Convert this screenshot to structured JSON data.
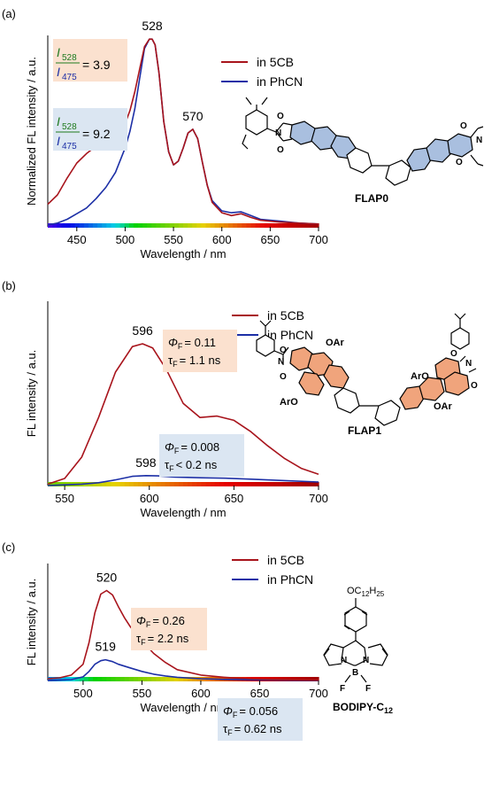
{
  "colors": {
    "five_cb": "#a8141c",
    "phcn": "#1c2fa6",
    "box_orange": "#fbe1cf",
    "box_blue": "#dbe6f2",
    "ring_blue": "#a9bfdf",
    "ring_orange": "#f0a47c"
  },
  "chart_data": [
    {
      "type": "line",
      "panel_label": "(a)",
      "xlabel": "Wavelength / nm",
      "ylabel": "Normalized FL intensity / a.u.",
      "xlim": [
        420,
        700
      ],
      "ylim": [
        0,
        1.02
      ],
      "xticks": [
        450,
        500,
        550,
        600,
        650,
        700
      ],
      "xtick_labels": [
        "450",
        "500",
        "550",
        "600",
        "650",
        "700"
      ],
      "legend": "top-right",
      "series": [
        {
          "name": "in 5CB",
          "color": "#a8141c",
          "x": [
            420,
            430,
            440,
            450,
            460,
            470,
            480,
            490,
            500,
            505,
            510,
            515,
            520,
            525,
            528,
            531,
            535,
            540,
            545,
            550,
            555,
            560,
            565,
            570,
            575,
            580,
            585,
            590,
            600,
            610,
            620,
            630,
            640,
            660,
            680,
            700
          ],
          "y": [
            0.12,
            0.17,
            0.26,
            0.34,
            0.39,
            0.43,
            0.44,
            0.47,
            0.55,
            0.62,
            0.72,
            0.84,
            0.96,
            1.0,
            1.0,
            0.97,
            0.82,
            0.56,
            0.4,
            0.33,
            0.35,
            0.42,
            0.5,
            0.52,
            0.47,
            0.34,
            0.22,
            0.13,
            0.075,
            0.06,
            0.07,
            0.05,
            0.035,
            0.025,
            0.02,
            0.015
          ]
        },
        {
          "name": "in PhCN",
          "color": "#1c2fa6",
          "x": [
            420,
            430,
            440,
            450,
            460,
            470,
            480,
            490,
            500,
            505,
            510,
            515,
            520,
            525,
            528,
            531,
            535,
            540,
            545,
            550,
            555,
            560,
            565,
            570,
            575,
            580,
            585,
            590,
            600,
            610,
            620,
            630,
            640,
            660,
            680,
            700
          ],
          "y": [
            0.01,
            0.02,
            0.04,
            0.07,
            0.1,
            0.15,
            0.21,
            0.29,
            0.42,
            0.51,
            0.63,
            0.79,
            0.95,
            1.0,
            1.0,
            0.97,
            0.82,
            0.56,
            0.4,
            0.33,
            0.35,
            0.42,
            0.5,
            0.52,
            0.47,
            0.34,
            0.22,
            0.14,
            0.085,
            0.075,
            0.08,
            0.06,
            0.04,
            0.03,
            0.02,
            0.015
          ]
        }
      ],
      "annotations": [
        {
          "text": "528",
          "x": 528,
          "y": 1.0
        },
        {
          "text": "570",
          "x": 570,
          "y": 0.52
        },
        {
          "text": "475",
          "x": 475,
          "y": 0.44
        }
      ]
    },
    {
      "type": "line",
      "panel_label": "(b)",
      "xlabel": "Wavelength / nm",
      "ylabel": "FL intensity / a.u.",
      "xlim": [
        540,
        700
      ],
      "ylim": [
        0,
        1.3
      ],
      "xticks": [
        550,
        600,
        650,
        700
      ],
      "xtick_labels": [
        "550",
        "600",
        "650",
        "700"
      ],
      "legend": "top",
      "series": [
        {
          "name": "in 5CB",
          "color": "#a8141c",
          "x": [
            540,
            550,
            560,
            570,
            580,
            590,
            596,
            602,
            610,
            620,
            630,
            640,
            650,
            660,
            670,
            680,
            690,
            700
          ],
          "y": [
            0.01,
            0.05,
            0.2,
            0.48,
            0.8,
            0.98,
            1.0,
            0.97,
            0.82,
            0.58,
            0.48,
            0.49,
            0.46,
            0.38,
            0.28,
            0.19,
            0.12,
            0.08
          ]
        },
        {
          "name": "in PhCN",
          "color": "#1c2fa6",
          "x": [
            540,
            550,
            560,
            570,
            580,
            590,
            598,
            605,
            615,
            630,
            645,
            660,
            680,
            700
          ],
          "y": [
            0.0,
            0.005,
            0.01,
            0.02,
            0.04,
            0.065,
            0.07,
            0.068,
            0.06,
            0.055,
            0.052,
            0.045,
            0.035,
            0.025
          ]
        }
      ],
      "annotations": [
        {
          "text": "596",
          "x": 596,
          "y": 1.0
        },
        {
          "text": "598",
          "x": 598,
          "y": 0.07
        }
      ]
    },
    {
      "type": "line",
      "panel_label": "(c)",
      "xlabel": "Wavelength / nm",
      "ylabel": "FL intensity / a.u.",
      "xlim": [
        470,
        700
      ],
      "ylim": [
        0,
        1.3
      ],
      "xticks": [
        500,
        550,
        600,
        650,
        700
      ],
      "xtick_labels": [
        "500",
        "550",
        "600",
        "650",
        "700"
      ],
      "legend": "top",
      "series": [
        {
          "name": "in 5CB",
          "color": "#a8141c",
          "x": [
            470,
            480,
            490,
            500,
            505,
            510,
            515,
            520,
            525,
            530,
            535,
            540,
            550,
            560,
            570,
            580,
            600,
            620,
            640,
            660,
            680,
            700
          ],
          "y": [
            0.02,
            0.03,
            0.06,
            0.18,
            0.42,
            0.75,
            0.96,
            1.0,
            0.95,
            0.82,
            0.7,
            0.6,
            0.44,
            0.3,
            0.2,
            0.12,
            0.06,
            0.035,
            0.02,
            0.012,
            0.008,
            0.005
          ]
        },
        {
          "name": "in PhCN",
          "color": "#1c2fa6",
          "x": [
            470,
            480,
            490,
            500,
            505,
            510,
            515,
            519,
            525,
            530,
            540,
            550,
            560,
            570,
            580,
            600,
            620,
            640,
            660,
            680,
            700
          ],
          "y": [
            0.0,
            0.005,
            0.01,
            0.04,
            0.1,
            0.18,
            0.22,
            0.23,
            0.21,
            0.18,
            0.14,
            0.1,
            0.07,
            0.05,
            0.035,
            0.02,
            0.012,
            0.008,
            0.005,
            0.003,
            0.002
          ]
        }
      ],
      "annotations": [
        {
          "text": "520",
          "x": 520,
          "y": 1.0
        },
        {
          "text": "519",
          "x": 519,
          "y": 0.23
        }
      ]
    }
  ],
  "panel_a": {
    "ratio_num": "528",
    "ratio_den": "475",
    "ratio_5cb": "= 3.9",
    "ratio_phcn": "= 9.2",
    "molecule": "FLAP0"
  },
  "panel_b": {
    "phi_5cb": "= 0.11",
    "tau_5cb": "= 1.1 ns",
    "phi_phcn": "= 0.008",
    "tau_phcn": "< 0.2 ns",
    "molecule": "FLAP1",
    "oar": "OAr",
    "aro": "ArO"
  },
  "panel_c": {
    "phi_5cb": "= 0.26",
    "tau_5cb": "= 2.2 ns",
    "phi_phcn": "= 0.056",
    "tau_phcn": "= 0.62 ns",
    "molecule": "BODIPY-C",
    "molecule_sub": "12",
    "chain": "OC",
    "chain_sub1": "12",
    "chain_h": "H",
    "chain_sub2": "25"
  },
  "symbols": {
    "phi": "Φ",
    "phi_sub": "F",
    "tau": "τ",
    "tau_sub": "F",
    "I": "I"
  }
}
